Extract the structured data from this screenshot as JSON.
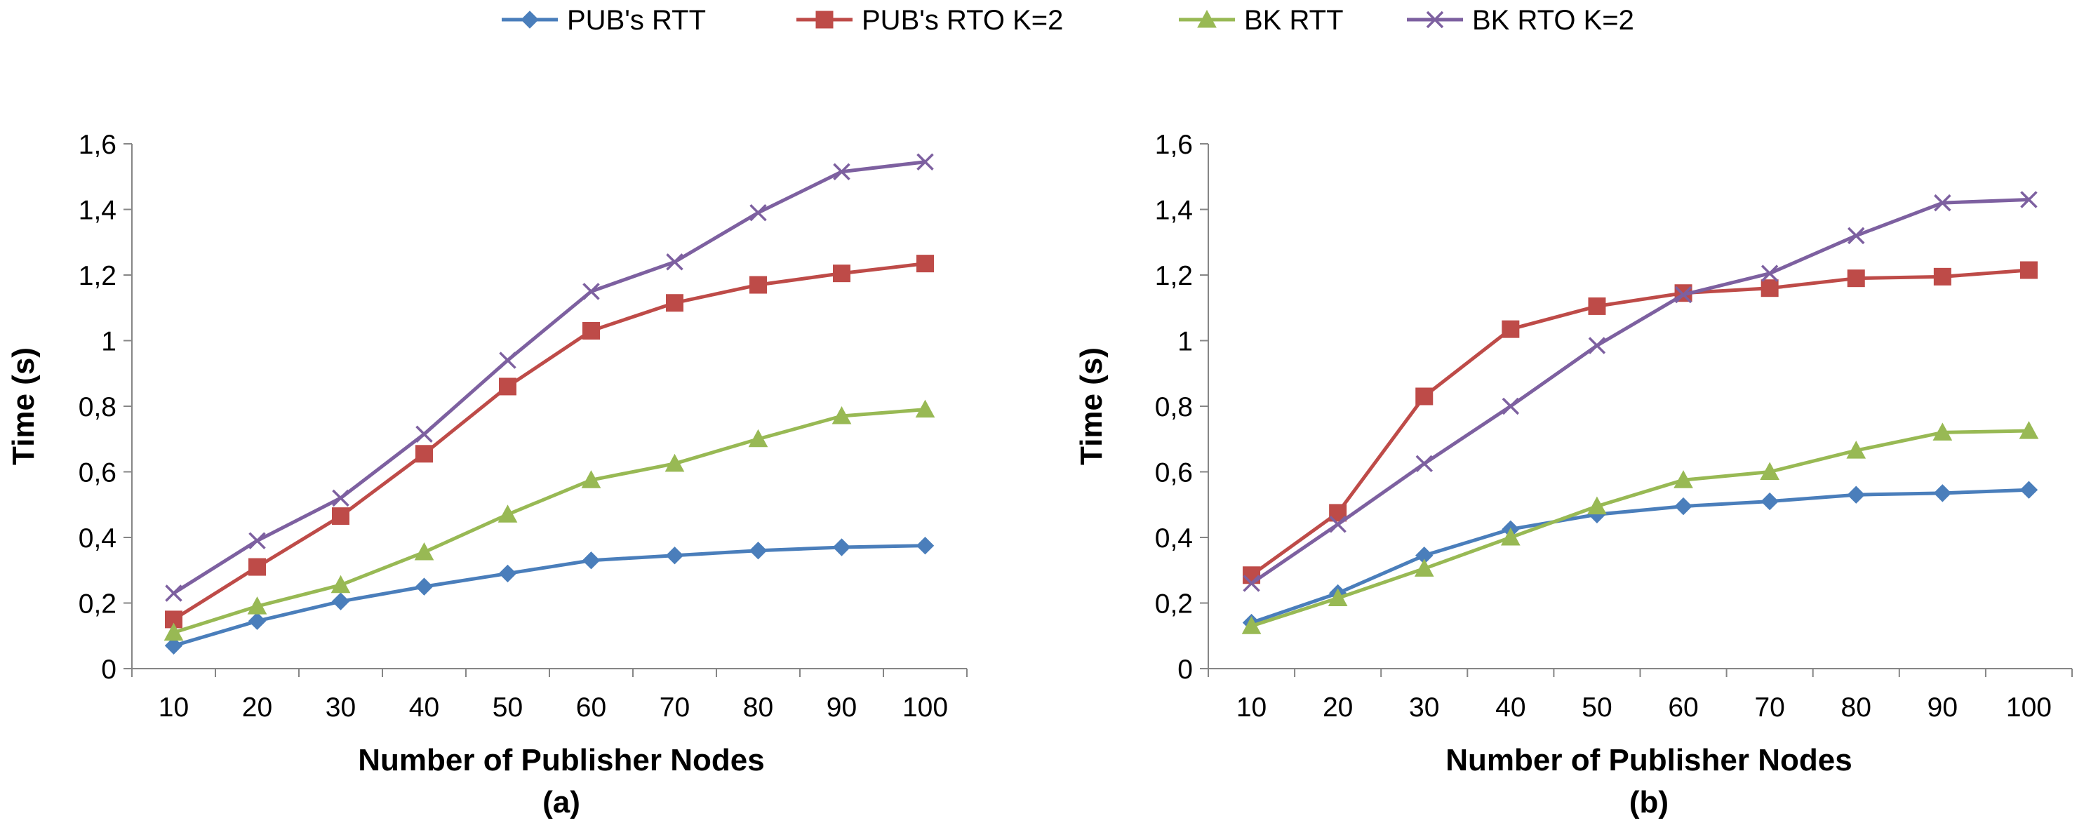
{
  "legend": [
    {
      "name": "PUB's RTT",
      "color": "#4a7ebb",
      "marker": "diamond"
    },
    {
      "name": "PUB's RTO K=2",
      "color": "#be4b48",
      "marker": "square"
    },
    {
      "name": "BK RTT",
      "color": "#98b954",
      "marker": "triangle"
    },
    {
      "name": "BK RTO K=2",
      "color": "#7d60a0",
      "marker": "x"
    }
  ],
  "chart_data": [
    {
      "type": "line",
      "subtitle": "(a)",
      "xlabel": "Number of Publisher Nodes",
      "ylabel": "Time (s)",
      "categories": [
        "10",
        "20",
        "30",
        "40",
        "50",
        "60",
        "70",
        "80",
        "90",
        "100"
      ],
      "yticks": [
        "0",
        "0,2",
        "0,4",
        "0,6",
        "0,8",
        "1",
        "1,2",
        "1,4",
        "1,6"
      ],
      "ylim": [
        0,
        1.6
      ],
      "series": [
        {
          "name": "PUB's RTT",
          "values": [
            0.07,
            0.145,
            0.205,
            0.25,
            0.29,
            0.33,
            0.345,
            0.36,
            0.37,
            0.375
          ]
        },
        {
          "name": "PUB's RTO K=2",
          "values": [
            0.15,
            0.31,
            0.465,
            0.655,
            0.86,
            1.03,
            1.115,
            1.17,
            1.205,
            1.235
          ]
        },
        {
          "name": "BK RTT",
          "values": [
            0.11,
            0.19,
            0.255,
            0.355,
            0.47,
            0.575,
            0.625,
            0.7,
            0.77,
            0.79
          ]
        },
        {
          "name": "BK RTO K=2",
          "values": [
            0.23,
            0.39,
            0.52,
            0.715,
            0.94,
            1.15,
            1.24,
            1.39,
            1.515,
            1.545
          ]
        }
      ]
    },
    {
      "type": "line",
      "subtitle": "(b)",
      "xlabel": "Number of Publisher Nodes",
      "ylabel": "Time (s)",
      "categories": [
        "10",
        "20",
        "30",
        "40",
        "50",
        "60",
        "70",
        "80",
        "90",
        "100"
      ],
      "yticks": [
        "0",
        "0,2",
        "0,4",
        "0,6",
        "0,8",
        "1",
        "1,2",
        "1,4",
        "1,6"
      ],
      "ylim": [
        0,
        1.6
      ],
      "series": [
        {
          "name": "PUB's RTT",
          "values": [
            0.14,
            0.23,
            0.345,
            0.425,
            0.47,
            0.495,
            0.51,
            0.53,
            0.535,
            0.545
          ]
        },
        {
          "name": "PUB's RTO K=2",
          "values": [
            0.285,
            0.475,
            0.83,
            1.035,
            1.105,
            1.145,
            1.16,
            1.19,
            1.195,
            1.215
          ]
        },
        {
          "name": "BK RTT",
          "values": [
            0.13,
            0.215,
            0.305,
            0.4,
            0.495,
            0.575,
            0.6,
            0.665,
            0.72,
            0.725
          ]
        },
        {
          "name": "BK RTO K=2",
          "values": [
            0.26,
            0.44,
            0.625,
            0.8,
            0.985,
            1.14,
            1.205,
            1.32,
            1.42,
            1.43
          ]
        }
      ]
    }
  ]
}
